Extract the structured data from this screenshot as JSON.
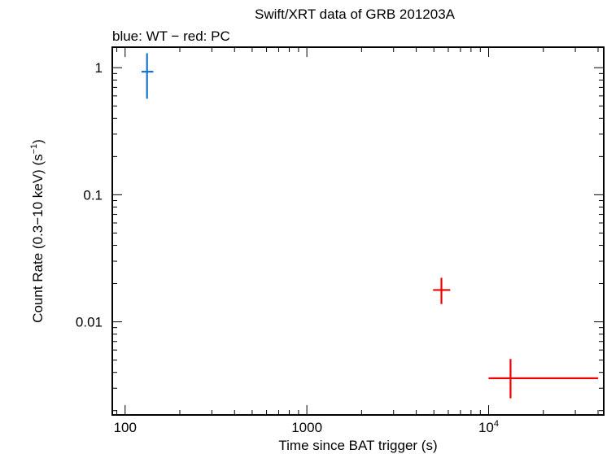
{
  "chart_data": {
    "type": "scatter",
    "title": "Swift/XRT data of GRB 201203A",
    "subtitle": "blue: WT − red: PC",
    "xlabel": "Time since BAT trigger (s)",
    "ylabel": "Count Rate (0.3−10 keV) (s",
    "ylabel_sup": "−1",
    "ylabel_end": ")",
    "xscale": "log",
    "yscale": "log",
    "xlim": [
      85,
      43000
    ],
    "ylim": [
      0.00185,
      1.45
    ],
    "grid": false,
    "x_ticks": [
      {
        "value": 100,
        "label": "100"
      },
      {
        "value": 1000,
        "label": "1000"
      },
      {
        "value": 10000,
        "label": "10",
        "sup": "4"
      }
    ],
    "y_ticks": [
      {
        "value": 1,
        "label": "1"
      },
      {
        "value": 0.1,
        "label": "0.1"
      },
      {
        "value": 0.01,
        "label": "0.01"
      }
    ],
    "series": [
      {
        "mode": "WT",
        "color": "#1874cd",
        "points": [
          {
            "x": 132,
            "x_lo": 123,
            "x_hi": 143,
            "y": 0.93,
            "y_lo": 0.57,
            "y_hi": 1.3
          }
        ]
      },
      {
        "mode": "PC",
        "color": "#ee0000",
        "points": [
          {
            "x": 5500,
            "x_lo": 4950,
            "x_hi": 6150,
            "y": 0.0178,
            "y_lo": 0.0138,
            "y_hi": 0.0222
          },
          {
            "x": 13200,
            "x_lo": 10000,
            "x_hi": 40000,
            "y": 0.0036,
            "y_lo": 0.0025,
            "y_hi": 0.0051
          }
        ]
      }
    ]
  }
}
